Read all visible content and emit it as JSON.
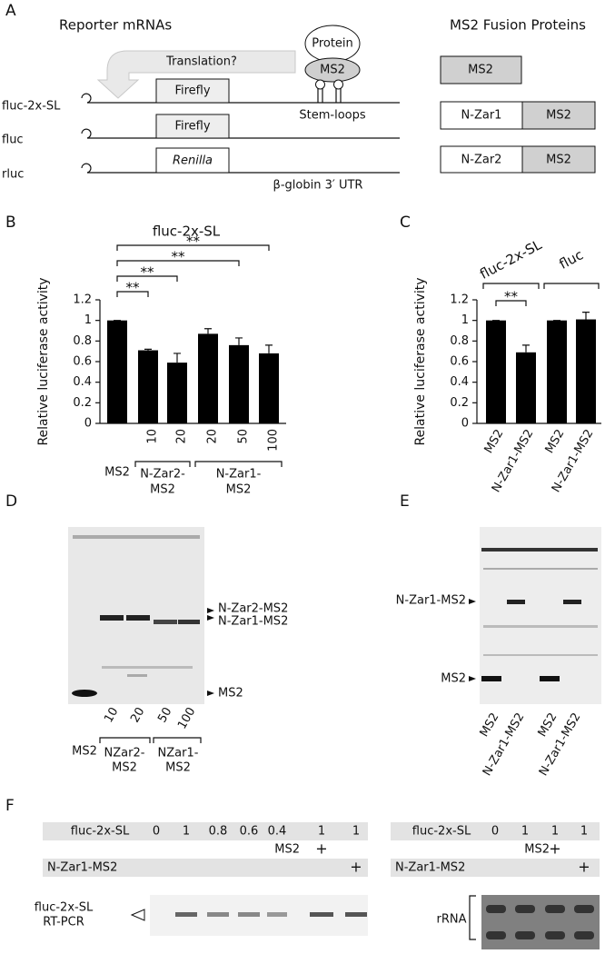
{
  "panel_a": {
    "label": "A",
    "reporters_title": "Reporter mRNAs",
    "fusions_title": "MS2 Fusion Proteins",
    "translation": "Translation?",
    "protein": "Protein",
    "tether": "MS2",
    "stem_loops": "Stem-loops",
    "utr": "β-globin 3′ UTR",
    "reporters": [
      {
        "name": "fluc-2x-SL",
        "gene": "Firefly"
      },
      {
        "name": "fluc",
        "gene": "Firefly"
      },
      {
        "name": "rluc",
        "gene": "Renilla"
      }
    ],
    "fusions": [
      [
        "MS2"
      ],
      [
        "N-Zar1",
        "MS2"
      ],
      [
        "N-Zar2",
        "MS2"
      ]
    ]
  },
  "chart_data": [
    {
      "type": "bar",
      "label": "B",
      "title": "fluc-2x-SL",
      "y_label": "Relative luciferase activity",
      "categories": [
        "MS2",
        "10",
        "20",
        "20",
        "50",
        "100"
      ],
      "values": [
        1,
        0.71,
        0.59,
        0.87,
        0.76,
        0.68
      ],
      "errors": [
        0,
        0.01,
        0.09,
        0.05,
        0.07,
        0.08
      ],
      "color": "#000000",
      "ylim": [
        0,
        1.2
      ],
      "yticks": [
        0,
        0.2,
        0.4,
        0.6,
        0.8,
        1,
        1.2
      ],
      "groups": [
        {
          "lines": [
            "N-Zar2-",
            "MS2"
          ],
          "from": 1,
          "to": 2
        },
        {
          "lines": [
            "N-Zar1-",
            "MS2"
          ],
          "from": 3,
          "to": 5
        }
      ],
      "significance": [
        {
          "from": 0,
          "to": 1,
          "label": "**"
        },
        {
          "from": 0,
          "to": 2,
          "label": "**"
        },
        {
          "from": 0,
          "to": 4,
          "label": "**"
        },
        {
          "from": 0,
          "to": 5,
          "label": "**"
        }
      ]
    },
    {
      "type": "bar",
      "label": "C",
      "y_label": "Relative luciferase activity",
      "categories": [
        "MS2",
        "N-Zar1-MS2",
        "MS2",
        "N-Zar1-MS2"
      ],
      "values": [
        1,
        0.69,
        1,
        1.01
      ],
      "errors": [
        0,
        0.07,
        0,
        0.07
      ],
      "color": "#000000",
      "ylim": [
        0,
        1.2
      ],
      "yticks": [
        0,
        0.2,
        0.4,
        0.6,
        0.8,
        1,
        1.2
      ],
      "groups": [
        {
          "lines": [
            "fluc-2x-SL"
          ],
          "from": 0,
          "to": 1
        },
        {
          "lines": [
            "fluc"
          ],
          "from": 2,
          "to": 3
        }
      ],
      "significance": [
        {
          "from": 0,
          "to": 1,
          "label": "**"
        }
      ]
    }
  ],
  "panel_d": {
    "label": "D",
    "markers": [
      "N-Zar2-MS2",
      "N-Zar1-MS2",
      "MS2"
    ],
    "lanes": [
      "MS2",
      "10",
      "20",
      "50",
      "100"
    ],
    "groups": [
      [
        "NZar2-",
        "MS2"
      ],
      [
        "NZar1-",
        "MS2"
      ]
    ]
  },
  "panel_e": {
    "label": "E",
    "markers": [
      "N-Zar1-MS2",
      "MS2"
    ],
    "lanes": [
      "MS2",
      "N-Zar1-MS2",
      "MS2",
      "N-Zar1-MS2"
    ]
  },
  "panel_f": {
    "label": "F",
    "left": {
      "rows": [
        {
          "label": "fluc-2x-SL",
          "cells": [
            "0",
            "1",
            "0.8",
            "0.6",
            "0.4",
            "1",
            "1"
          ]
        },
        {
          "label": "MS2",
          "cells": [
            null,
            null,
            null,
            null,
            null,
            "+",
            null
          ]
        },
        {
          "label": "N-Zar1-MS2",
          "cells": [
            null,
            null,
            null,
            null,
            null,
            null,
            "+"
          ]
        }
      ],
      "product": [
        "fluc-2x-SL",
        "RT-PCR"
      ]
    },
    "right": {
      "rows": [
        {
          "label": "fluc-2x-SL",
          "cells": [
            "0",
            "1",
            "1",
            "1"
          ]
        },
        {
          "label": "MS2",
          "cells": [
            null,
            null,
            "+",
            null
          ]
        },
        {
          "label": "N-Zar1-MS2",
          "cells": [
            null,
            null,
            null,
            "+"
          ]
        }
      ],
      "gel": "rRNA"
    }
  }
}
